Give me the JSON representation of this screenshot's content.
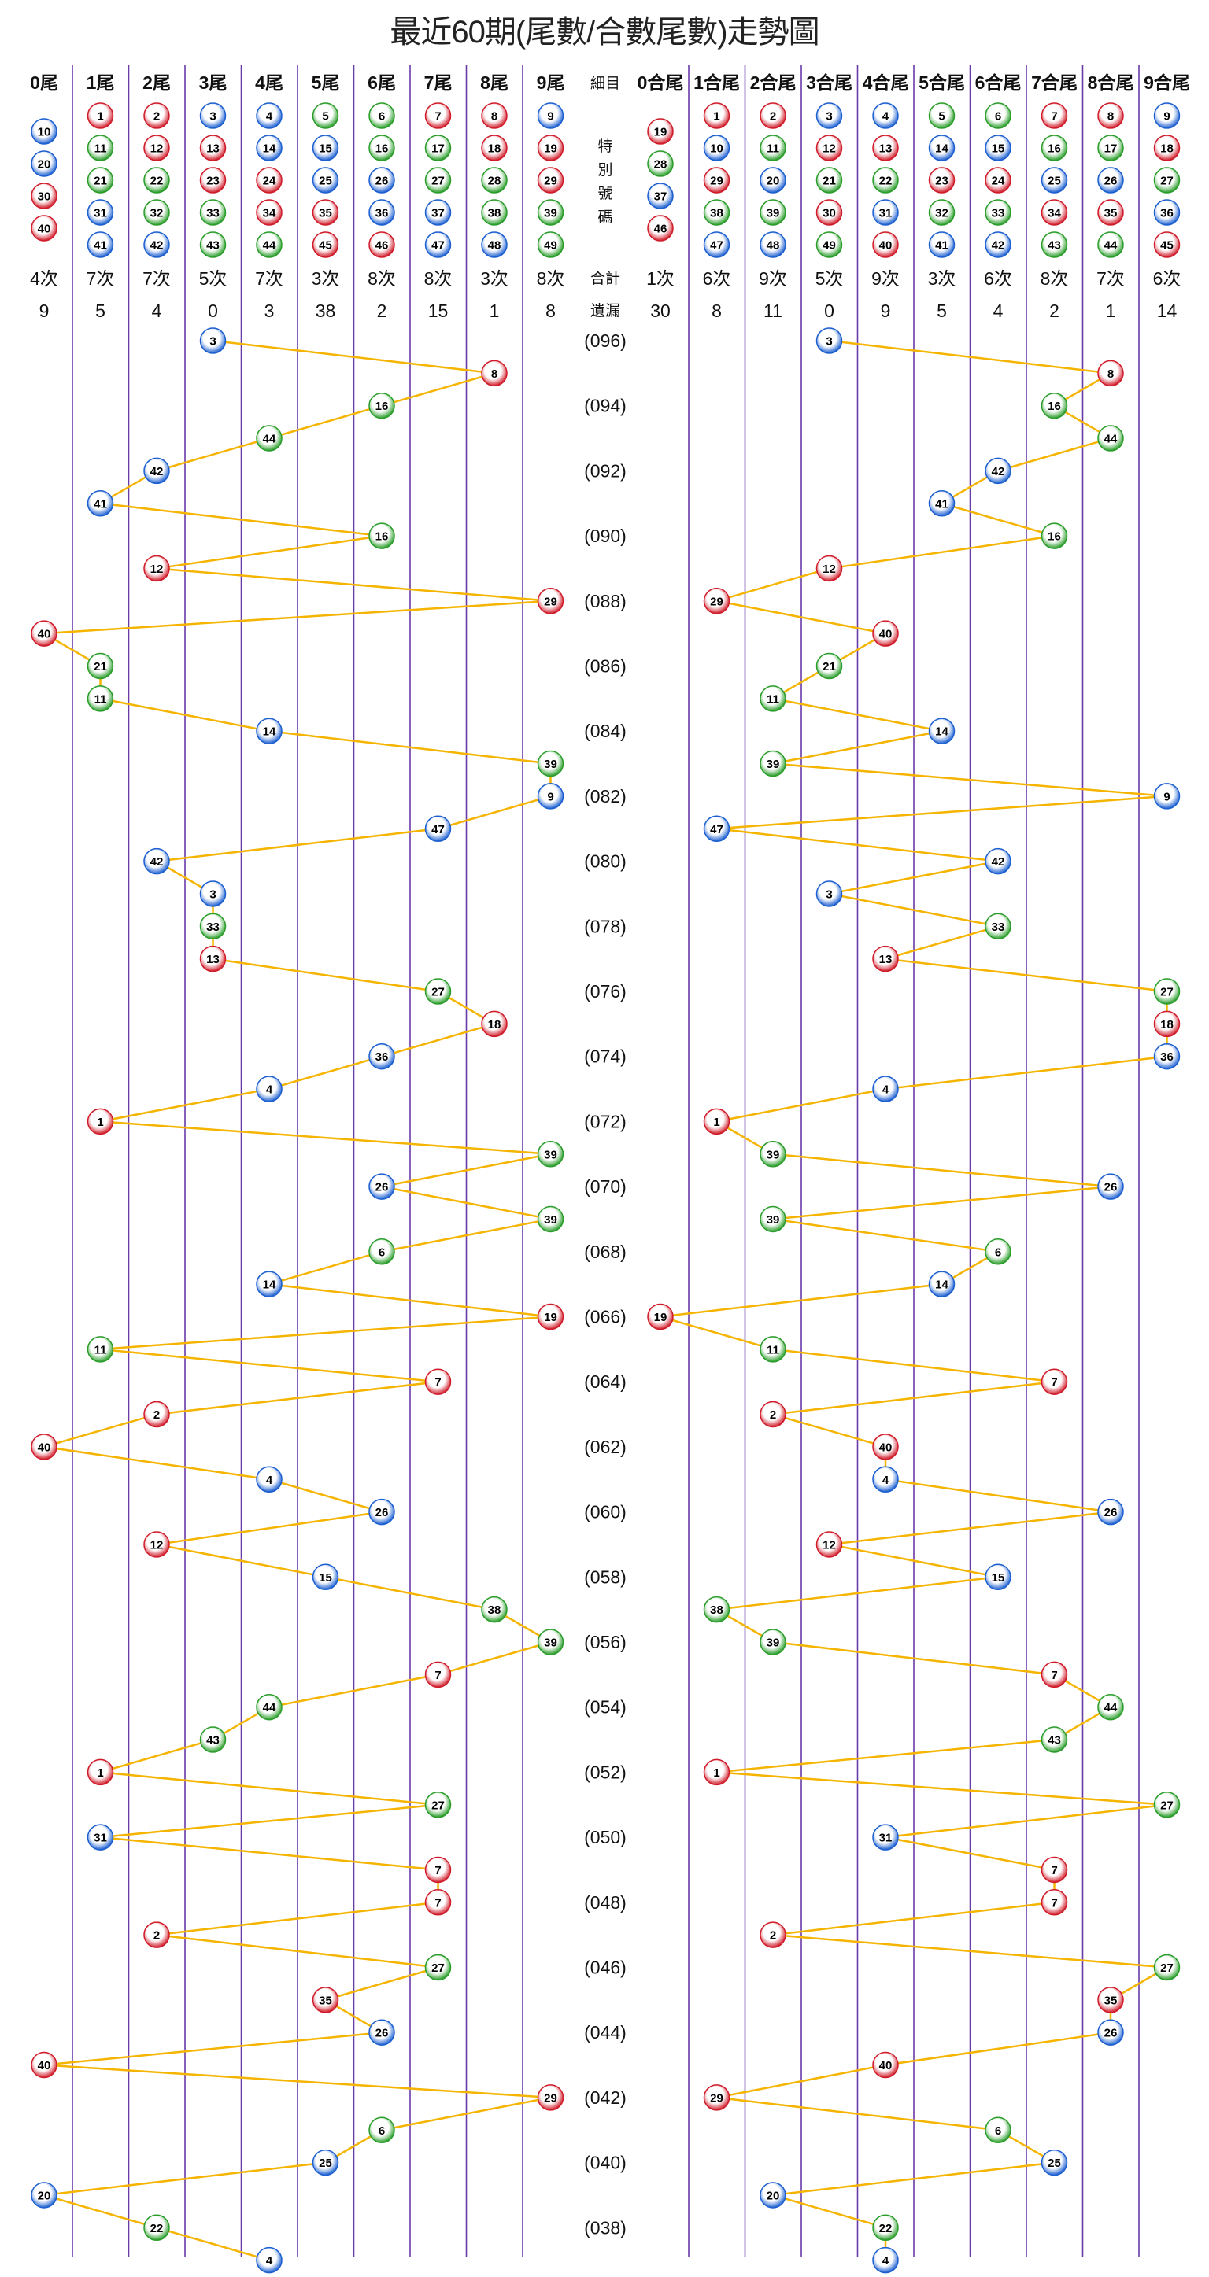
{
  "title": "最近60期(尾數/合數尾數)走勢圖",
  "colors": {
    "red": "#d01c2a",
    "blue": "#1c5fd0",
    "green": "#2a9d2a",
    "line": "#f5b400",
    "grid": "#6a3aa8"
  },
  "middle": {
    "detail": "細目",
    "special": [
      "特",
      "別",
      "號",
      "碼"
    ],
    "total": "合計",
    "missing": "遺漏"
  },
  "left_columns": [
    {
      "label": "0尾",
      "numbers": [
        10,
        20,
        30,
        40
      ],
      "count": "4次",
      "missing": "9"
    },
    {
      "label": "1尾",
      "numbers": [
        1,
        11,
        21,
        31,
        41
      ],
      "count": "7次",
      "missing": "5"
    },
    {
      "label": "2尾",
      "numbers": [
        2,
        12,
        22,
        32,
        42
      ],
      "count": "7次",
      "missing": "4"
    },
    {
      "label": "3尾",
      "numbers": [
        3,
        13,
        23,
        33,
        43
      ],
      "count": "5次",
      "missing": "0"
    },
    {
      "label": "4尾",
      "numbers": [
        4,
        14,
        24,
        34,
        44
      ],
      "count": "7次",
      "missing": "3"
    },
    {
      "label": "5尾",
      "numbers": [
        5,
        15,
        25,
        35,
        45
      ],
      "count": "3次",
      "missing": "38"
    },
    {
      "label": "6尾",
      "numbers": [
        6,
        16,
        26,
        36,
        46
      ],
      "count": "8次",
      "missing": "2"
    },
    {
      "label": "7尾",
      "numbers": [
        7,
        17,
        27,
        37,
        47
      ],
      "count": "8次",
      "missing": "15"
    },
    {
      "label": "8尾",
      "numbers": [
        8,
        18,
        28,
        38,
        48
      ],
      "count": "3次",
      "missing": "1"
    },
    {
      "label": "9尾",
      "numbers": [
        9,
        19,
        29,
        39,
        49
      ],
      "count": "8次",
      "missing": "8"
    }
  ],
  "right_columns": [
    {
      "label": "0合尾",
      "numbers": [
        19,
        28,
        37,
        46
      ],
      "count": "1次",
      "missing": "30"
    },
    {
      "label": "1合尾",
      "numbers": [
        1,
        10,
        29,
        38,
        47
      ],
      "count": "6次",
      "missing": "8"
    },
    {
      "label": "2合尾",
      "numbers": [
        2,
        11,
        20,
        39,
        48
      ],
      "count": "9次",
      "missing": "11"
    },
    {
      "label": "3合尾",
      "numbers": [
        3,
        12,
        21,
        30,
        49
      ],
      "count": "5次",
      "missing": "0"
    },
    {
      "label": "4合尾",
      "numbers": [
        4,
        13,
        22,
        31,
        40
      ],
      "count": "9次",
      "missing": "9"
    },
    {
      "label": "5合尾",
      "numbers": [
        5,
        14,
        23,
        32,
        41
      ],
      "count": "3次",
      "missing": "5"
    },
    {
      "label": "6合尾",
      "numbers": [
        6,
        15,
        24,
        33,
        42
      ],
      "count": "6次",
      "missing": "4"
    },
    {
      "label": "7合尾",
      "numbers": [
        7,
        16,
        25,
        34,
        43
      ],
      "count": "8次",
      "missing": "2"
    },
    {
      "label": "8合尾",
      "numbers": [
        8,
        17,
        26,
        35,
        44
      ],
      "count": "7次",
      "missing": "1"
    },
    {
      "label": "9合尾",
      "numbers": [
        9,
        18,
        27,
        36,
        45
      ],
      "count": "6次",
      "missing": "14"
    }
  ],
  "chart_data": {
    "type": "line",
    "title": "最近60期(尾數/合數尾數)走勢圖",
    "period_labels_shown": [
      "(096)",
      "(094)",
      "(092)",
      "(090)",
      "(088)",
      "(086)",
      "(084)",
      "(082)",
      "(080)",
      "(078)",
      "(076)",
      "(074)",
      "(072)",
      "(070)",
      "(068)",
      "(066)",
      "(064)",
      "(062)",
      "(060)",
      "(058)",
      "(056)",
      "(054)",
      "(052)",
      "(050)",
      "(048)",
      "(046)",
      "(044)",
      "(042)",
      "(040)",
      "(038)"
    ],
    "draws": [
      {
        "period": "096",
        "number": 3
      },
      {
        "period": "095",
        "number": 8
      },
      {
        "period": "094",
        "number": 16
      },
      {
        "period": "093",
        "number": 44
      },
      {
        "period": "092",
        "number": 42
      },
      {
        "period": "091",
        "number": 41
      },
      {
        "period": "090",
        "number": 16
      },
      {
        "period": "089",
        "number": 12
      },
      {
        "period": "088",
        "number": 29
      },
      {
        "period": "087",
        "number": 40
      },
      {
        "period": "086",
        "number": 21
      },
      {
        "period": "085",
        "number": 11
      },
      {
        "period": "084",
        "number": 14
      },
      {
        "period": "083",
        "number": 39
      },
      {
        "period": "082",
        "number": 9
      },
      {
        "period": "081",
        "number": 47
      },
      {
        "period": "080",
        "number": 42
      },
      {
        "period": "079",
        "number": 3
      },
      {
        "period": "078",
        "number": 33
      },
      {
        "period": "077",
        "number": 13
      },
      {
        "period": "076",
        "number": 27
      },
      {
        "period": "075",
        "number": 18
      },
      {
        "period": "074",
        "number": 36
      },
      {
        "period": "073",
        "number": 4
      },
      {
        "period": "072",
        "number": 1
      },
      {
        "period": "071",
        "number": 39
      },
      {
        "period": "070",
        "number": 26
      },
      {
        "period": "069",
        "number": 39
      },
      {
        "period": "068",
        "number": 6
      },
      {
        "period": "067",
        "number": 14
      },
      {
        "period": "066",
        "number": 19
      },
      {
        "period": "065",
        "number": 11
      },
      {
        "period": "064",
        "number": 7
      },
      {
        "period": "063",
        "number": 2
      },
      {
        "period": "062",
        "number": 40
      },
      {
        "period": "061",
        "number": 4
      },
      {
        "period": "060",
        "number": 26
      },
      {
        "period": "059",
        "number": 12
      },
      {
        "period": "058",
        "number": 15
      },
      {
        "period": "057",
        "number": 38
      },
      {
        "period": "056",
        "number": 39
      },
      {
        "period": "055",
        "number": 7
      },
      {
        "period": "054",
        "number": 44
      },
      {
        "period": "053",
        "number": 43
      },
      {
        "period": "052",
        "number": 1
      },
      {
        "period": "051",
        "number": 27
      },
      {
        "period": "050",
        "number": 31
      },
      {
        "period": "049",
        "number": 7
      },
      {
        "period": "048",
        "number": 7
      },
      {
        "period": "047",
        "number": 2
      },
      {
        "period": "046",
        "number": 27
      },
      {
        "period": "045",
        "number": 35
      },
      {
        "period": "044",
        "number": 26
      },
      {
        "period": "043",
        "number": 40
      },
      {
        "period": "042",
        "number": 29
      },
      {
        "period": "041",
        "number": 6
      },
      {
        "period": "040",
        "number": 25
      },
      {
        "period": "039",
        "number": 20
      },
      {
        "period": "038",
        "number": 22
      },
      {
        "period": "037",
        "number": 4
      }
    ]
  }
}
